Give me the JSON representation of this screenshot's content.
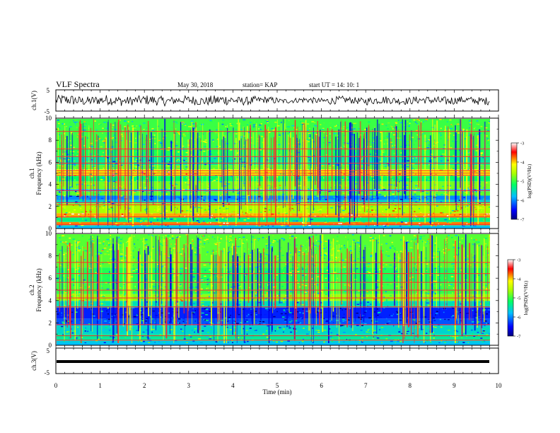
{
  "header": {
    "title": "VLF Spectra",
    "date": "May 30, 2018",
    "station": "station= KAP",
    "start": "start  UT  =    14: 10: 1"
  },
  "chart_data": [
    {
      "type": "line",
      "panel": "ch1-waveform",
      "ylabel": "ch.1(V)",
      "ylim": [
        -5,
        5
      ],
      "yticks": [
        "5",
        "-5"
      ],
      "xlim": [
        0,
        10
      ],
      "series_color": "#000000",
      "envelope_description_values": {
        "x_min": [
          0,
          0.5,
          1,
          1.5,
          2,
          2.5,
          3,
          3.5,
          4,
          4.5,
          5,
          5.5,
          6,
          6.5,
          7,
          7.5,
          8,
          8.5,
          9,
          9.5,
          9.8
        ],
        "amplitude_v": [
          2.5,
          2.2,
          2.4,
          2.1,
          2.3,
          2.0,
          2.2,
          2.5,
          2.0,
          1.6,
          1.2,
          1.4,
          1.8,
          1.6,
          1.9,
          1.7,
          1.8,
          2.1,
          1.7,
          1.9,
          1.8
        ]
      }
    },
    {
      "type": "heatmap",
      "panel": "ch1-spectrogram",
      "ylabel": "ch.1",
      "ylabel2": "Frequency  (kHz)",
      "ylim": [
        0,
        10
      ],
      "yticks": [
        "0",
        "2",
        "4",
        "6",
        "8",
        "10"
      ],
      "xlim": [
        0,
        9.85
      ],
      "colorbar": {
        "label": "log(PSD)(V²/Hz)",
        "range": [
          -7,
          -3
        ],
        "ticks": [
          "-3",
          "-4",
          "-5",
          "-6",
          "-7"
        ]
      },
      "bands": [
        {
          "f_khz": [
            0.0,
            0.3
          ],
          "level": -5.6
        },
        {
          "f_khz": [
            0.3,
            0.6
          ],
          "level": -3.8
        },
        {
          "f_khz": [
            0.6,
            1.0
          ],
          "level": -5.3
        },
        {
          "f_khz": [
            1.0,
            1.4
          ],
          "level": -3.9
        },
        {
          "f_khz": [
            1.4,
            2.3
          ],
          "level": -4.6
        },
        {
          "f_khz": [
            2.3,
            2.6
          ],
          "level": -5.6
        },
        {
          "f_khz": [
            2.6,
            3.0
          ],
          "level": -6.0
        },
        {
          "f_khz": [
            3.0,
            3.4
          ],
          "level": -4.9
        },
        {
          "f_khz": [
            3.4,
            3.6
          ],
          "level": -5.8
        },
        {
          "f_khz": [
            3.6,
            4.3
          ],
          "level": -4.8
        },
        {
          "f_khz": [
            4.3,
            4.8
          ],
          "level": -5.2
        },
        {
          "f_khz": [
            4.8,
            5.4
          ],
          "level": -4.2
        },
        {
          "f_khz": [
            5.4,
            5.8
          ],
          "level": -4.9
        },
        {
          "f_khz": [
            5.8,
            6.6
          ],
          "level": -5.4
        },
        {
          "f_khz": [
            6.6,
            7.3
          ],
          "level": -5.1
        },
        {
          "f_khz": [
            7.3,
            10.0
          ],
          "level": -5.0
        }
      ],
      "lines_khz": [
        0.4,
        1.1,
        2.2,
        2.4,
        3.5,
        4.9,
        5.1,
        5.3,
        6.0,
        6.6,
        7.3,
        8.9
      ]
    },
    {
      "type": "heatmap",
      "panel": "ch2-spectrogram",
      "ylabel": "ch.2",
      "ylabel2": "Frequency  (kHz)",
      "ylim": [
        0,
        10
      ],
      "yticks": [
        "0",
        "2",
        "4",
        "6",
        "8",
        "10"
      ],
      "xlim": [
        0,
        9.85
      ],
      "colorbar": {
        "label": "log(PSD)(V²/Hz)",
        "range": [
          -7,
          -3
        ],
        "ticks": [
          "-3",
          "-4",
          "-5",
          "-6",
          "-7"
        ]
      },
      "bands": [
        {
          "f_khz": [
            0.0,
            0.4
          ],
          "level": -5.7
        },
        {
          "f_khz": [
            0.4,
            1.0
          ],
          "level": -5.4
        },
        {
          "f_khz": [
            1.0,
            1.8
          ],
          "level": -5.6
        },
        {
          "f_khz": [
            1.8,
            2.4
          ],
          "level": -6.2
        },
        {
          "f_khz": [
            2.4,
            3.4
          ],
          "level": -6.4
        },
        {
          "f_khz": [
            3.4,
            4.0
          ],
          "level": -5.5
        },
        {
          "f_khz": [
            4.0,
            4.6
          ],
          "level": -4.7
        },
        {
          "f_khz": [
            4.6,
            5.6
          ],
          "level": -5.0
        },
        {
          "f_khz": [
            5.6,
            7.0
          ],
          "level": -5.1
        },
        {
          "f_khz": [
            7.0,
            10.0
          ],
          "level": -4.9
        }
      ],
      "lines_khz": [
        0.5,
        0.9,
        1.9,
        3.5,
        4.3,
        5.0,
        5.7,
        6.5,
        7.5
      ]
    },
    {
      "type": "line",
      "panel": "ch3-waveform",
      "ylabel": "ch.3(V)",
      "ylim": [
        -5,
        5
      ],
      "yticks": [
        "5",
        "-5"
      ],
      "xlim": [
        0,
        10
      ],
      "series_color": "#000000",
      "constant_value_v": 0
    }
  ],
  "xaxis": {
    "label": "Time  (min)",
    "ticks": [
      "0",
      "1",
      "2",
      "3",
      "4",
      "5",
      "6",
      "7",
      "8",
      "9",
      "10"
    ]
  }
}
